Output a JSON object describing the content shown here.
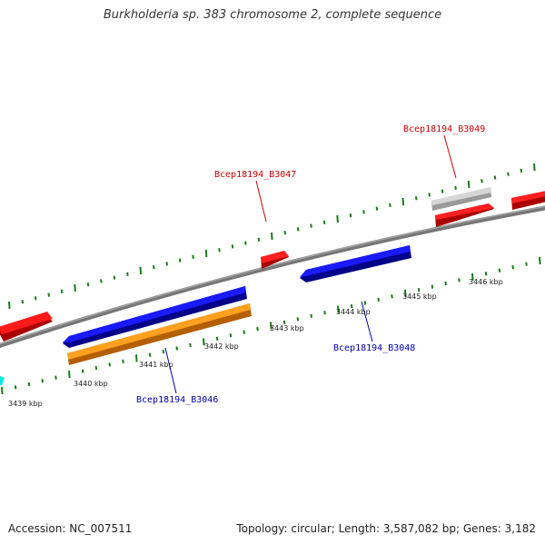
{
  "title": "Burkholderia sp. 383 chromosome 2, complete sequence",
  "footer": {
    "accession": "Accession: NC_007511",
    "summary": "Topology: circular; Length: 3,587,082 bp; Genes: 3,182"
  },
  "kbp_labels": [
    "3439 kbp",
    "3440 kbp",
    "3441 kbp",
    "3442 kbp",
    "3443 kbp",
    "3444 kbp",
    "3445 kbp",
    "3446 kbp"
  ],
  "gene_labels": {
    "b3046": "Bcep18194_B3046",
    "b3047": "Bcep18194_B3047",
    "b3048": "Bcep18194_B3048",
    "b3049": "Bcep18194_B3049"
  },
  "colors": {
    "forward_cds": "#ff0000",
    "reverse_cds": "#0000ff",
    "orange_feature": "#ff9900",
    "gray_feature": "#c0c0c0",
    "cyan_feature": "#00e5e5",
    "backbone": "#808080",
    "ticks": "#1a7a1a",
    "forward_label": "#cc0000",
    "reverse_label": "#0000aa"
  }
}
